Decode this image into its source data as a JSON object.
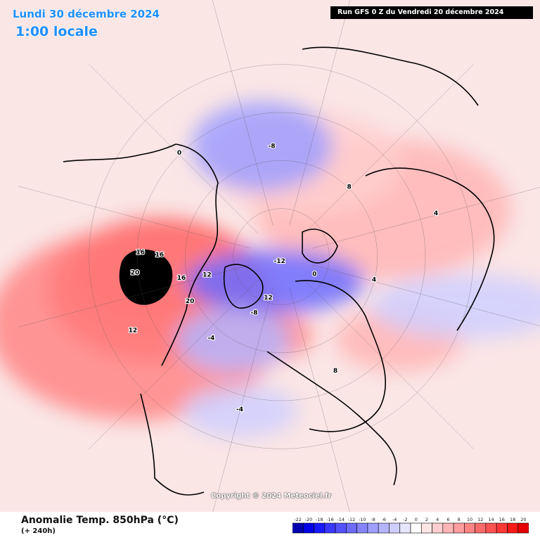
{
  "header": {
    "valid_date": "Lundi 30 décembre 2024",
    "valid_time": "1:00 locale",
    "run_info": "Run GFS 0 Z du Vendredi 20 décembre 2024"
  },
  "map": {
    "copyright": "Copyright © 2024 Meteociel.fr",
    "contour_labels": [
      {
        "text": "20",
        "lon": -98,
        "lat": 44
      },
      {
        "text": "20",
        "lon": -78,
        "lat": 58
      },
      {
        "text": "16",
        "lon": -92,
        "lat": 58
      },
      {
        "text": "16",
        "lon": -105,
        "lat": 52
      },
      {
        "text": "16",
        "lon": -106,
        "lat": 46
      },
      {
        "text": "12",
        "lon": -90,
        "lat": 66
      },
      {
        "text": "12",
        "lon": -78,
        "lat": 38
      },
      {
        "text": "12",
        "lon": -32,
        "lat": 76
      },
      {
        "text": "-12",
        "lon": -30,
        "lat": 88
      },
      {
        "text": "-8",
        "lon": -40,
        "lat": 70
      },
      {
        "text": "-8",
        "lon": 170,
        "lat": 56
      },
      {
        "text": "8",
        "lon": 120,
        "lat": 60
      },
      {
        "text": "8",
        "lon": 10,
        "lat": 50
      },
      {
        "text": "-4",
        "lon": -55,
        "lat": 56
      },
      {
        "text": "-4",
        "lon": -30,
        "lat": 40
      },
      {
        "text": "4",
        "lon": 60,
        "lat": 60
      },
      {
        "text": "4",
        "lon": 90,
        "lat": 40
      },
      {
        "text": "0",
        "lon": 45,
        "lat": 78
      },
      {
        "text": "0",
        "lon": -150,
        "lat": 45
      }
    ]
  },
  "footer": {
    "field_title": "Anomalie Temp. 850hPa (°C)",
    "lead_time": "(+ 240h)"
  },
  "legend": {
    "ticks": [
      "-22",
      "-20",
      "-18",
      "-16",
      "-14",
      "-12",
      "-10",
      "-8",
      "-6",
      "-4",
      "-2",
      "0",
      "2",
      "4",
      "6",
      "8",
      "10",
      "12",
      "14",
      "16",
      "18",
      "20"
    ],
    "colors": [
      "#0000b0",
      "#0000e6",
      "#1a1aff",
      "#3838ff",
      "#5252ff",
      "#6b6bff",
      "#8585ff",
      "#9e9eff",
      "#b5b5ff",
      "#cfcfff",
      "#e6e6ff",
      "#ffffff",
      "#ffe6e6",
      "#ffcfcf",
      "#ffb5b5",
      "#ff9e9e",
      "#ff8585",
      "#ff6b6b",
      "#ff5252",
      "#ff3838",
      "#ff1a1a",
      "#e60000"
    ]
  },
  "anomalies": [
    {
      "type": "warm",
      "lon": -97,
      "lat": 47,
      "rx": 22,
      "ry": 14,
      "value": 22
    },
    {
      "type": "warm",
      "lon": -90,
      "lat": 50,
      "rx": 34,
      "ry": 22,
      "value": 16
    },
    {
      "type": "warm",
      "lon": -80,
      "lat": 40,
      "rx": 46,
      "ry": 30,
      "value": 10
    },
    {
      "type": "warm",
      "lon": -25,
      "lat": 65,
      "rx": 14,
      "ry": 8,
      "value": 10
    },
    {
      "type": "warm",
      "lon": 100,
      "lat": 55,
      "rx": 40,
      "ry": 22,
      "value": 6
    },
    {
      "type": "warm",
      "lon": 40,
      "lat": 45,
      "rx": 20,
      "ry": 10,
      "value": 6
    },
    {
      "type": "warm",
      "lon": 150,
      "lat": 60,
      "rx": 30,
      "ry": 16,
      "value": 4
    },
    {
      "type": "cold",
      "lon": -30,
      "lat": 82,
      "rx": 28,
      "ry": 10,
      "value": -12
    },
    {
      "type": "cold",
      "lon": -45,
      "lat": 60,
      "rx": 18,
      "ry": 10,
      "value": -6
    },
    {
      "type": "cold",
      "lon": 175,
      "lat": 55,
      "rx": 22,
      "ry": 14,
      "value": -8
    },
    {
      "type": "cold",
      "lon": -30,
      "lat": 40,
      "rx": 18,
      "ry": 8,
      "value": -4
    },
    {
      "type": "cold",
      "lon": 60,
      "lat": 30,
      "rx": 30,
      "ry": 10,
      "value": -4
    }
  ]
}
